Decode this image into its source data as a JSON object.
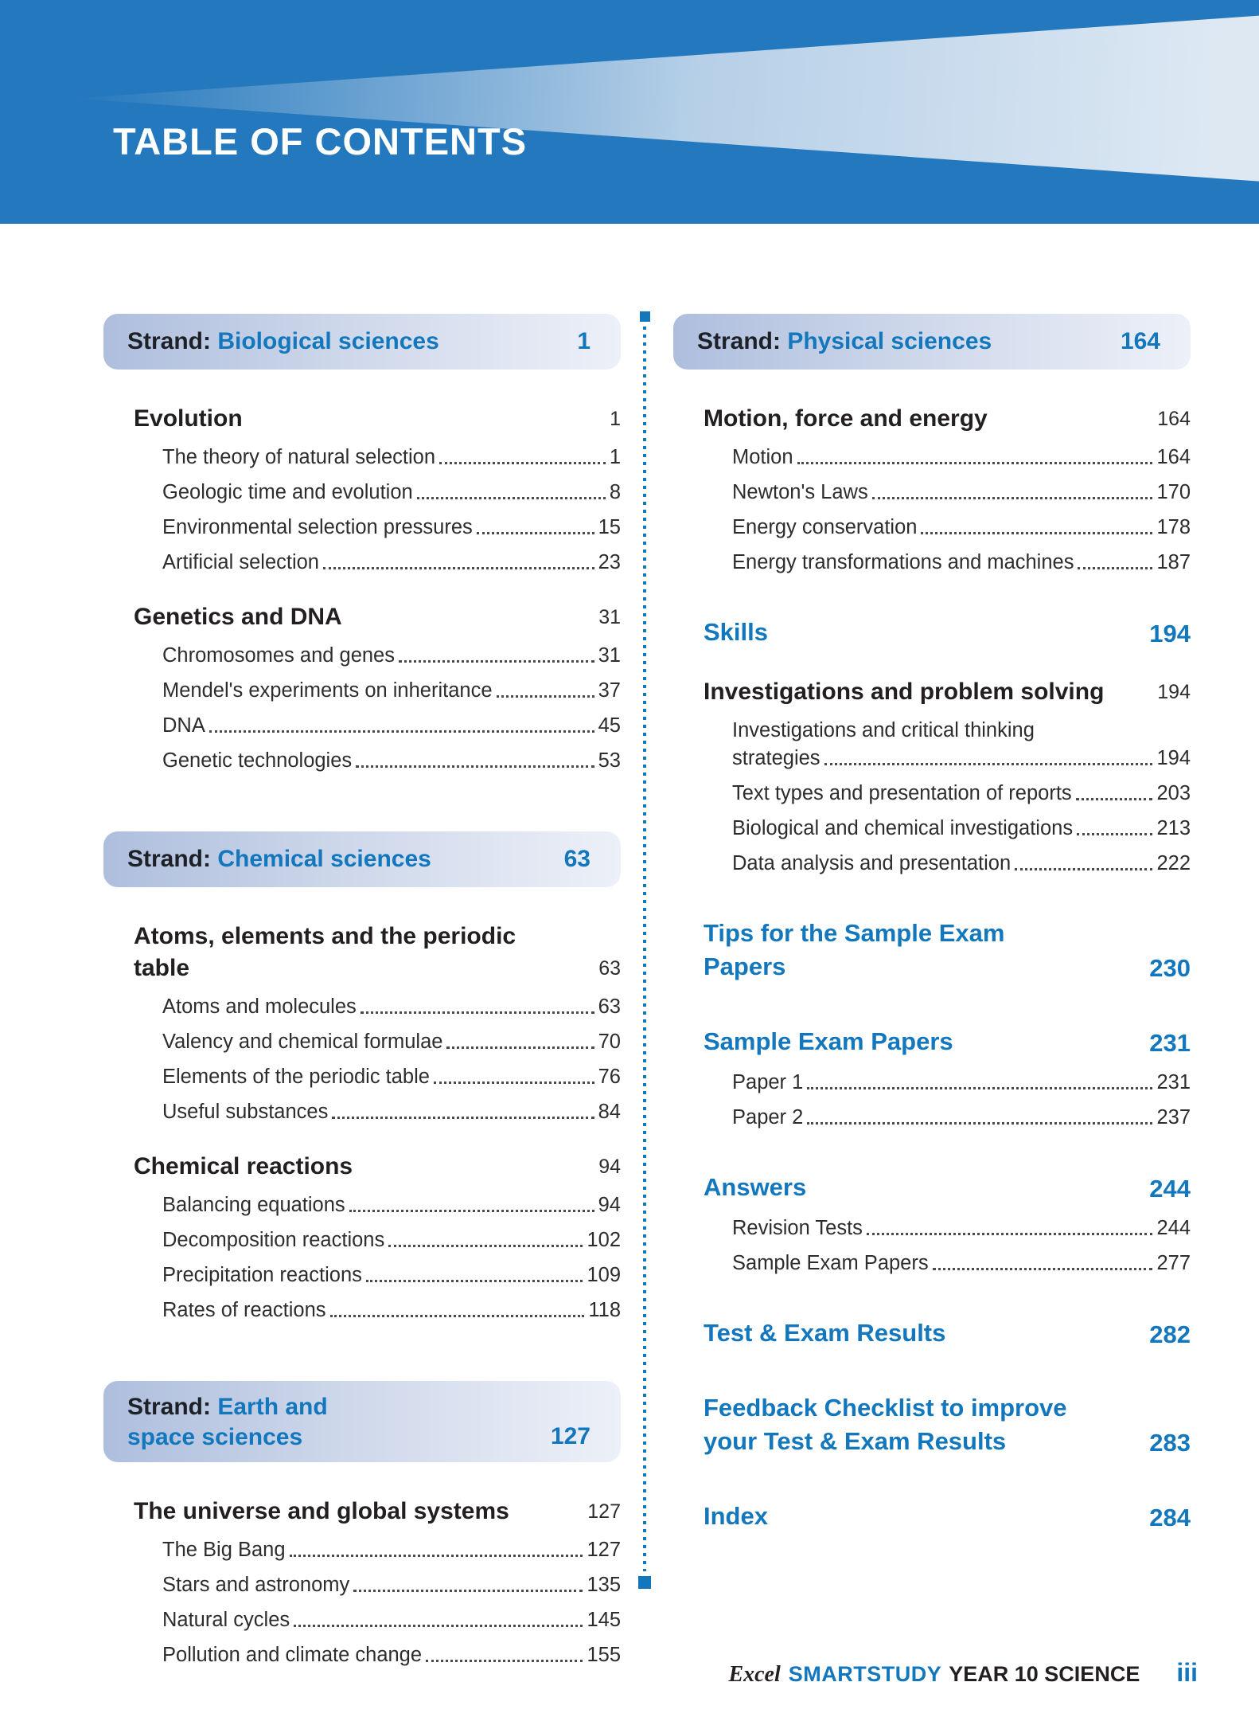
{
  "banner": {
    "title": "TABLE OF CONTENTS"
  },
  "colors": {
    "banner_blue": "#2478bd",
    "accent_blue": "#1377bd",
    "text_dark": "#231f20",
    "strand_gradient_left": "#aebedd",
    "strand_gradient_right": "#edf0f8"
  },
  "columns": [
    {
      "blocks": [
        {
          "type": "strand",
          "prefix": "Strand:",
          "lines": [
            "Biological sciences"
          ],
          "page": "1"
        },
        {
          "type": "section",
          "lines": [
            "Evolution"
          ],
          "page": "1",
          "items": [
            {
              "lines": [
                "The theory of natural selection"
              ],
              "page": "1"
            },
            {
              "lines": [
                "Geologic time and evolution"
              ],
              "page": "8"
            },
            {
              "lines": [
                "Environmental selection pressures"
              ],
              "page": "15"
            },
            {
              "lines": [
                "Artificial selection"
              ],
              "page": "23"
            }
          ]
        },
        {
          "type": "section",
          "lines": [
            "Genetics and DNA"
          ],
          "page": "31",
          "items": [
            {
              "lines": [
                "Chromosomes and genes"
              ],
              "page": "31"
            },
            {
              "lines": [
                "Mendel's experiments on inheritance"
              ],
              "page": "37"
            },
            {
              "lines": [
                "DNA"
              ],
              "page": "45"
            },
            {
              "lines": [
                "Genetic technologies"
              ],
              "page": "53"
            }
          ]
        },
        {
          "type": "strand",
          "prefix": "Strand:",
          "lines": [
            "Chemical sciences"
          ],
          "page": "63"
        },
        {
          "type": "section",
          "lines": [
            "Atoms, elements and the periodic",
            "table"
          ],
          "page": "63",
          "items": [
            {
              "lines": [
                "Atoms and molecules"
              ],
              "page": "63"
            },
            {
              "lines": [
                "Valency and chemical formulae"
              ],
              "page": "70"
            },
            {
              "lines": [
                "Elements of the periodic table"
              ],
              "page": "76"
            },
            {
              "lines": [
                "Useful substances"
              ],
              "page": "84"
            }
          ]
        },
        {
          "type": "section",
          "lines": [
            "Chemical reactions"
          ],
          "page": "94",
          "items": [
            {
              "lines": [
                "Balancing equations"
              ],
              "page": "94"
            },
            {
              "lines": [
                "Decomposition reactions"
              ],
              "page": "102"
            },
            {
              "lines": [
                "Precipitation reactions"
              ],
              "page": "109"
            },
            {
              "lines": [
                "Rates of reactions"
              ],
              "page": "118"
            }
          ]
        },
        {
          "type": "strand",
          "prefix": "Strand:",
          "lines": [
            "Earth and",
            "space sciences"
          ],
          "page": "127"
        },
        {
          "type": "section",
          "lines": [
            "The universe and global systems"
          ],
          "page": "127",
          "items": [
            {
              "lines": [
                "The Big Bang"
              ],
              "page": "127"
            },
            {
              "lines": [
                "Stars and astronomy"
              ],
              "page": "135"
            },
            {
              "lines": [
                "Natural cycles"
              ],
              "page": "145"
            },
            {
              "lines": [
                "Pollution and climate change"
              ],
              "page": "155"
            }
          ]
        }
      ]
    },
    {
      "blocks": [
        {
          "type": "strand",
          "prefix": "Strand:",
          "lines": [
            "Physical sciences"
          ],
          "page": "164"
        },
        {
          "type": "section",
          "lines": [
            "Motion, force and energy"
          ],
          "page": "164",
          "items": [
            {
              "lines": [
                "Motion"
              ],
              "page": "164"
            },
            {
              "lines": [
                "Newton's Laws"
              ],
              "page": "170"
            },
            {
              "lines": [
                "Energy conservation"
              ],
              "page": "178"
            },
            {
              "lines": [
                "Energy transformations and machines"
              ],
              "page": "187"
            }
          ]
        },
        {
          "type": "heading_blue",
          "lines": [
            "Skills"
          ],
          "page": "194"
        },
        {
          "type": "section",
          "lines": [
            "Investigations and problem solving"
          ],
          "page": "194",
          "items": [
            {
              "lines": [
                "Investigations and critical thinking",
                "strategies"
              ],
              "page": "194"
            },
            {
              "lines": [
                "Text types and presentation of reports"
              ],
              "page": "203"
            },
            {
              "lines": [
                "Biological and chemical investigations"
              ],
              "page": "213"
            },
            {
              "lines": [
                "Data analysis and presentation"
              ],
              "page": "222"
            }
          ]
        },
        {
          "type": "heading_blue",
          "lines": [
            "Tips for the Sample Exam",
            "Papers"
          ],
          "page": "230"
        },
        {
          "type": "heading_blue",
          "lines": [
            "Sample Exam Papers"
          ],
          "page": "231",
          "items": [
            {
              "lines": [
                "Paper 1"
              ],
              "page": "231"
            },
            {
              "lines": [
                "Paper 2"
              ],
              "page": "237"
            }
          ]
        },
        {
          "type": "heading_blue",
          "lines": [
            "Answers"
          ],
          "page": "244",
          "items": [
            {
              "lines": [
                "Revision Tests"
              ],
              "page": "244"
            },
            {
              "lines": [
                "Sample Exam Papers"
              ],
              "page": "277"
            }
          ]
        },
        {
          "type": "heading_blue",
          "lines": [
            "Test & Exam Results"
          ],
          "page": "282"
        },
        {
          "type": "heading_blue",
          "lines": [
            "Feedback Checklist to improve",
            "your Test & Exam Results"
          ],
          "page": "283"
        },
        {
          "type": "heading_blue",
          "lines": [
            "Index"
          ],
          "page": "284"
        }
      ]
    }
  ],
  "footer": {
    "brand_excel": "Excel",
    "brand_smartstudy": "SMARTSTUDY",
    "brand_series": "YEAR 10 SCIENCE",
    "page_number": "iii"
  }
}
